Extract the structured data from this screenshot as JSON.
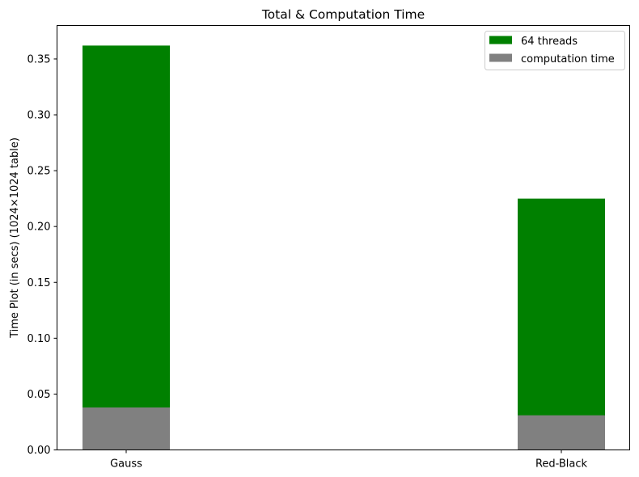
{
  "chart_data": {
    "type": "bar",
    "stacked": false,
    "overlaid": true,
    "title": "Total & Computation Time",
    "xlabel": "",
    "ylabel": "Time Plot (in secs) (1024×1024 table)",
    "categories": [
      "Gauss",
      "Red-Black"
    ],
    "series": [
      {
        "name": "64 threads",
        "color": "#008000",
        "values": [
          0.362,
          0.225
        ]
      },
      {
        "name": "computation time",
        "color": "#808080",
        "values": [
          0.038,
          0.031
        ]
      }
    ],
    "ylim": [
      0,
      0.38
    ],
    "yticks": [
      0.0,
      0.05,
      0.1,
      0.15,
      0.2,
      0.25,
      0.3,
      0.35
    ],
    "ytick_labels": [
      "0.00",
      "0.05",
      "0.10",
      "0.15",
      "0.20",
      "0.25",
      "0.30",
      "0.35"
    ],
    "grid": false,
    "legend_position": "top-right"
  }
}
